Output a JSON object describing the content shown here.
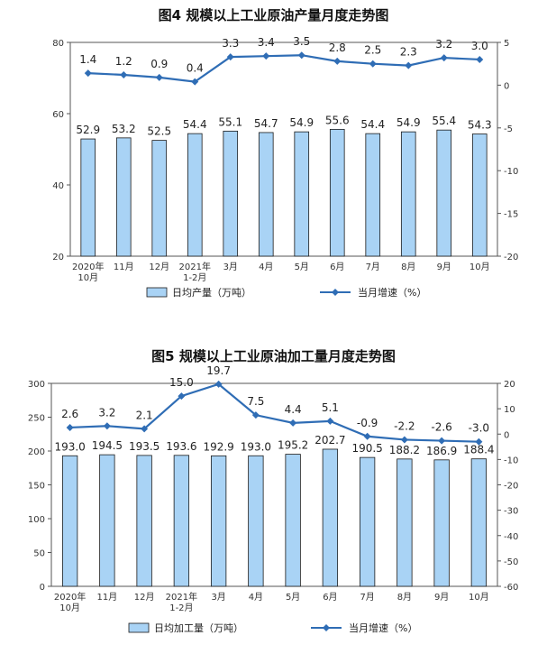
{
  "chart_data": [
    {
      "type": "bar",
      "title": "图4  规模以上工业原油产量月度走势图",
      "categories": [
        "2020年\n10月",
        "11月",
        "12月",
        "2021年\n1-2月",
        "3月",
        "4月",
        "5月",
        "6月",
        "7月",
        "8月",
        "9月",
        "10月"
      ],
      "series": [
        {
          "name": "日均产量（万吨）",
          "type": "bar",
          "axis": "left",
          "values": [
            52.9,
            53.2,
            52.5,
            54.4,
            55.1,
            54.7,
            54.9,
            55.6,
            54.4,
            54.9,
            55.4,
            54.3
          ],
          "labels": [
            "52.9",
            "53.2",
            "52.5",
            "54.4",
            "55.1",
            "54.7",
            "54.9",
            "55.6",
            "54.4",
            "54.9",
            "55.4",
            "54.3"
          ]
        },
        {
          "name": "当月增速（%）",
          "type": "line",
          "axis": "right",
          "values": [
            1.4,
            1.2,
            0.9,
            0.4,
            3.3,
            3.4,
            3.5,
            2.8,
            2.5,
            2.3,
            3.2,
            3.0
          ],
          "labels": [
            "1.4",
            "1.2",
            "0.9",
            "0.4",
            "3.3",
            "3.4",
            "3.5",
            "2.8",
            "2.5",
            "2.3",
            "3.2",
            "3.0"
          ]
        }
      ],
      "ylim_left": [
        20,
        80
      ],
      "yticks_left": [
        "20",
        "40",
        "60",
        "80"
      ],
      "ylim_right": [
        -20,
        5
      ],
      "yticks_right": [
        "-20",
        "-15",
        "-10",
        "-5",
        "0",
        "5"
      ],
      "legend_position": "bottom",
      "colors": {
        "bar_fill": "#a9d3f5",
        "bar_stroke": "#1a1a1a",
        "line": "#2f6db5"
      }
    },
    {
      "type": "bar",
      "title": "图5  规模以上工业原油加工量月度走势图",
      "categories": [
        "2020年\n10月",
        "11月",
        "12月",
        "2021年\n1-2月",
        "3月",
        "4月",
        "5月",
        "6月",
        "7月",
        "8月",
        "9月",
        "10月"
      ],
      "series": [
        {
          "name": "日均加工量（万吨）",
          "type": "bar",
          "axis": "left",
          "values": [
            193.0,
            194.5,
            193.5,
            193.6,
            192.9,
            193.0,
            195.2,
            202.7,
            190.5,
            188.2,
            186.9,
            188.4
          ],
          "labels": [
            "193.0",
            "194.5",
            "193.5",
            "193.6",
            "192.9",
            "193.0",
            "195.2",
            "202.7",
            "190.5",
            "188.2",
            "186.9",
            "188.4"
          ]
        },
        {
          "name": "当月增速（%）",
          "type": "line",
          "axis": "right",
          "values": [
            2.6,
            3.2,
            2.1,
            15.0,
            19.7,
            7.5,
            4.4,
            5.1,
            -0.9,
            -2.2,
            -2.6,
            -3.0
          ],
          "labels": [
            "2.6",
            "3.2",
            "2.1",
            "15.0",
            "19.7",
            "7.5",
            "4.4",
            "5.1",
            "-0.9",
            "-2.2",
            "-2.6",
            "-3.0"
          ]
        }
      ],
      "ylim_left": [
        0,
        300
      ],
      "yticks_left": [
        "0",
        "50",
        "100",
        "150",
        "200",
        "250",
        "300"
      ],
      "ylim_right": [
        -60,
        20
      ],
      "yticks_right": [
        "-60",
        "-50",
        "-40",
        "-30",
        "-20",
        "-10",
        "0",
        "10",
        "20"
      ],
      "legend_position": "bottom",
      "colors": {
        "bar_fill": "#a9d3f5",
        "bar_stroke": "#1a1a1a",
        "line": "#2f6db5"
      }
    }
  ]
}
